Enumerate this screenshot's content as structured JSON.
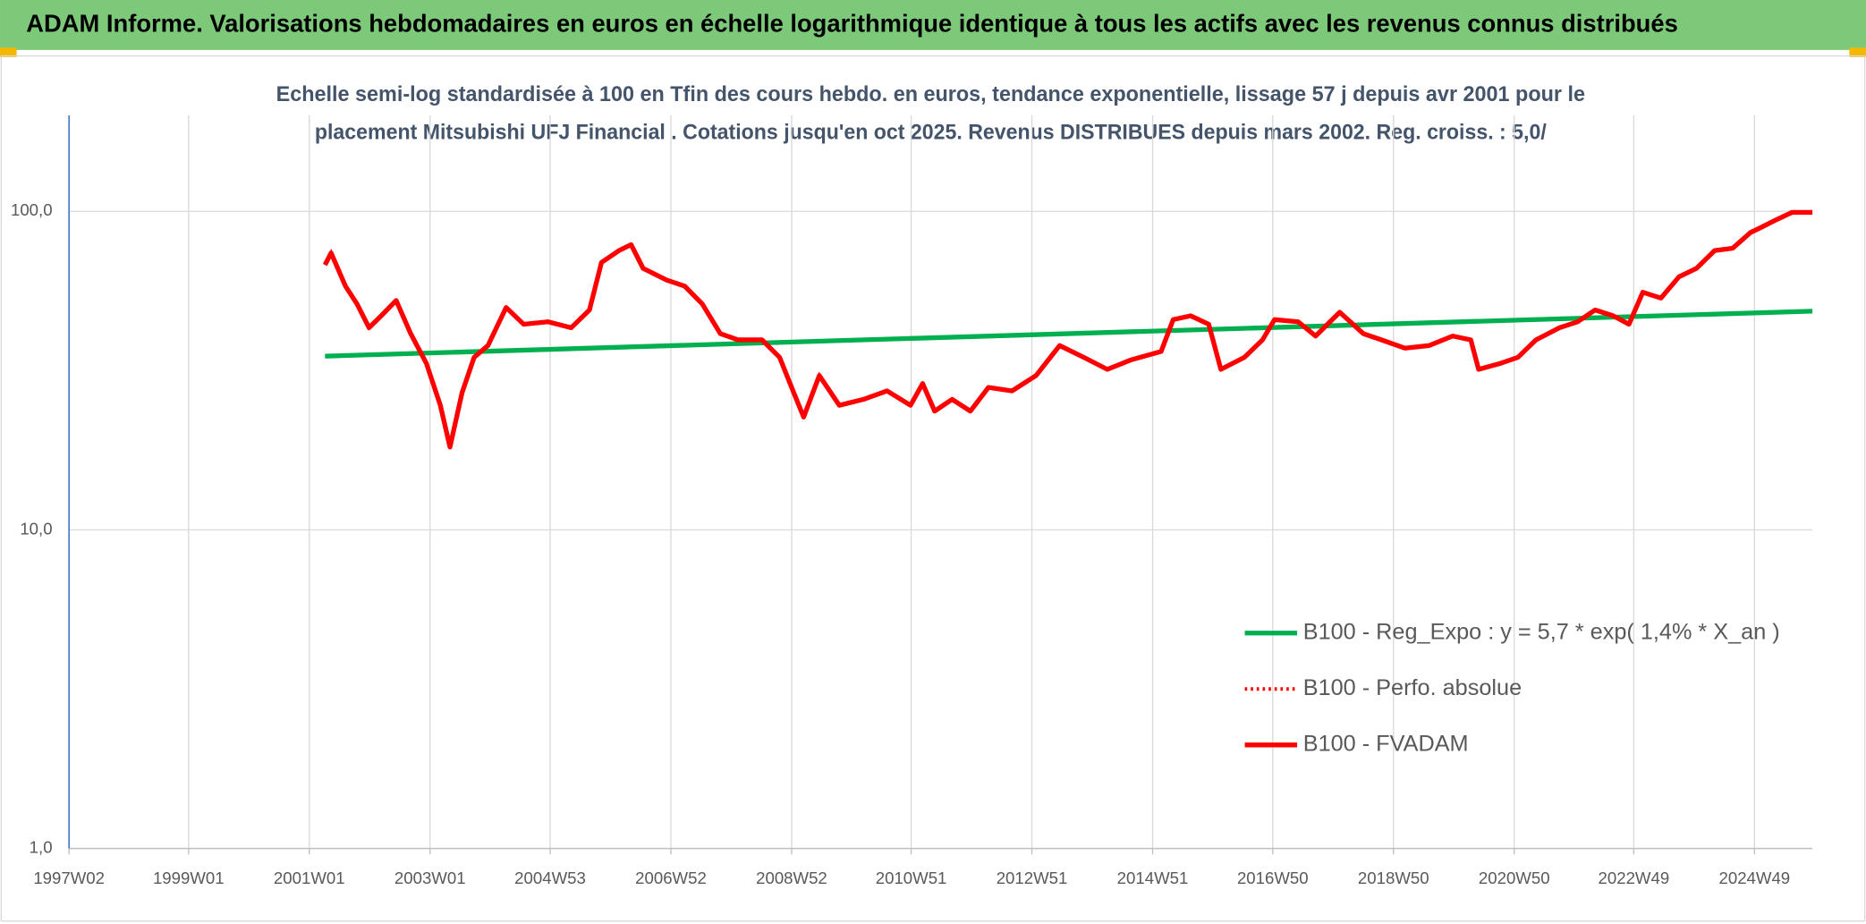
{
  "chart_data": {
    "type": "line",
    "header": "ADAM Informe. Valorisations hebdomadaires en euros en échelle logarithmique identique à tous les actifs avec les revenus connus distribués",
    "title": [
      "Echelle semi-log standardisée à 100 en Tfin des cours hebdo. en euros, tendance exponentielle, lissage 57 j depuis avr 2001 pour le",
      "placement Mitsubishi UFJ Financial . Cotations jusqu'en oct 2025. Revenus DISTRIBUES depuis mars 2002. Reg. croiss. : 5,0/"
    ],
    "log_y": true,
    "grid": true,
    "legend": "lower right",
    "xlim": [
      1997.02,
      2025.9
    ],
    "xticks": [
      {
        "value": 1997.02,
        "label": "1997W02"
      },
      {
        "value": 1999.0,
        "label": "1999W01"
      },
      {
        "value": 2001.0,
        "label": "2001W01"
      },
      {
        "value": 2003.0,
        "label": "2003W01"
      },
      {
        "value": 2004.99,
        "label": "2004W53"
      },
      {
        "value": 2006.99,
        "label": "2006W52"
      },
      {
        "value": 2008.99,
        "label": "2008W52"
      },
      {
        "value": 2010.97,
        "label": "2010W51"
      },
      {
        "value": 2012.97,
        "label": "2012W51"
      },
      {
        "value": 2014.97,
        "label": "2014W51"
      },
      {
        "value": 2016.96,
        "label": "2016W50"
      },
      {
        "value": 2018.96,
        "label": "2018W50"
      },
      {
        "value": 2020.96,
        "label": "2020W50"
      },
      {
        "value": 2022.94,
        "label": "2022W49"
      },
      {
        "value": 2024.94,
        "label": "2024W49"
      }
    ],
    "ylim": [
      1,
      200
    ],
    "yticks": [
      {
        "value": 1,
        "label": "1,0"
      },
      {
        "value": 10,
        "label": "10,0"
      },
      {
        "value": 100,
        "label": "100,0"
      }
    ],
    "series": [
      {
        "name": "B100 - Reg_Expo : y = 5,7 * exp( 1,4% *  X_an )",
        "color": "#00b050",
        "style": "solid",
        "x": [
          2001.26,
          2025.9
        ],
        "values": [
          35.1,
          48.6
        ]
      },
      {
        "name": "B100 - Perfo. absolue",
        "color": "#ff0000",
        "style": "dotted",
        "x": [
          2001.26,
          2001.36,
          2001.6,
          2001.79,
          2001.99,
          2002.19,
          2002.44,
          2002.68,
          2002.94,
          2003.17,
          2003.33,
          2003.53,
          2003.73,
          2003.96,
          2004.26,
          2004.55,
          2004.95,
          2005.34,
          2005.64,
          2005.84,
          2006.13,
          2006.33,
          2006.53,
          2006.92,
          2007.22,
          2007.51,
          2007.81,
          2008.1,
          2008.5,
          2008.79,
          2008.99,
          2009.19,
          2009.45,
          2009.78,
          2010.18,
          2010.57,
          2010.96,
          2011.16,
          2011.36,
          2011.65,
          2011.95,
          2012.25,
          2012.64,
          2013.04,
          2013.43,
          2013.83,
          2014.22,
          2014.62,
          2015.11,
          2015.31,
          2015.6,
          2015.9,
          2016.1,
          2016.49,
          2016.79,
          2016.99,
          2017.38,
          2017.67,
          2018.07,
          2018.46,
          2018.76,
          2019.15,
          2019.55,
          2019.94,
          2020.24,
          2020.37,
          2020.73,
          2021.02,
          2021.32,
          2021.71,
          2022.01,
          2022.3,
          2022.6,
          2022.86,
          2023.09,
          2023.39,
          2023.69,
          2023.98,
          2024.28,
          2024.58,
          2024.87,
          2025.07,
          2025.27,
          2025.56,
          2025.9
        ],
        "values": [
          67.9,
          74.0,
          58.2,
          51.2,
          43.1,
          47.0,
          52.5,
          41.3,
          33.3,
          24.6,
          18.2,
          26.9,
          34.8,
          37.9,
          49.9,
          44.2,
          45.0,
          43.1,
          49.0,
          69.1,
          75.3,
          78.6,
          66.2,
          60.8,
          58.2,
          51.2,
          41.3,
          39.5,
          39.5,
          34.8,
          28.0,
          22.6,
          30.5,
          24.6,
          25.7,
          27.3,
          24.6,
          28.8,
          23.6,
          25.7,
          23.6,
          28.0,
          27.3,
          30.5,
          37.9,
          34.8,
          31.9,
          34.2,
          36.3,
          45.7,
          47.0,
          44.2,
          31.9,
          34.8,
          39.5,
          45.7,
          45.0,
          40.6,
          48.2,
          41.3,
          39.5,
          37.2,
          37.9,
          40.6,
          39.5,
          31.9,
          33.3,
          34.8,
          39.5,
          43.1,
          45.0,
          49.0,
          47.0,
          44.2,
          55.7,
          53.4,
          62.3,
          66.2,
          75.3,
          76.6,
          85.7,
          89.4,
          93.4,
          99.2,
          99.2
        ]
      },
      {
        "name": "B100 - FVADAM",
        "color": "#ff0000",
        "style": "solid",
        "x": [
          2001.26,
          2001.36,
          2001.6,
          2001.79,
          2001.99,
          2002.19,
          2002.44,
          2002.68,
          2002.94,
          2003.17,
          2003.33,
          2003.53,
          2003.73,
          2003.96,
          2004.26,
          2004.55,
          2004.95,
          2005.34,
          2005.64,
          2005.84,
          2006.13,
          2006.33,
          2006.53,
          2006.92,
          2007.22,
          2007.51,
          2007.81,
          2008.1,
          2008.5,
          2008.79,
          2008.99,
          2009.19,
          2009.45,
          2009.78,
          2010.18,
          2010.57,
          2010.96,
          2011.16,
          2011.36,
          2011.65,
          2011.95,
          2012.25,
          2012.64,
          2013.04,
          2013.43,
          2013.83,
          2014.22,
          2014.62,
          2015.11,
          2015.31,
          2015.6,
          2015.9,
          2016.1,
          2016.49,
          2016.79,
          2016.99,
          2017.38,
          2017.67,
          2018.07,
          2018.46,
          2018.76,
          2019.15,
          2019.55,
          2019.94,
          2020.24,
          2020.37,
          2020.73,
          2021.02,
          2021.32,
          2021.71,
          2022.01,
          2022.3,
          2022.6,
          2022.86,
          2023.09,
          2023.39,
          2023.69,
          2023.98,
          2024.28,
          2024.58,
          2024.87,
          2025.07,
          2025.27,
          2025.56,
          2025.9
        ],
        "values": [
          67.9,
          74.0,
          58.2,
          51.2,
          43.1,
          47.0,
          52.5,
          41.3,
          33.3,
          24.6,
          18.2,
          26.9,
          34.8,
          37.9,
          49.9,
          44.2,
          45.0,
          43.1,
          49.0,
          69.1,
          75.3,
          78.6,
          66.2,
          60.8,
          58.2,
          51.2,
          41.3,
          39.5,
          39.5,
          34.8,
          28.0,
          22.6,
          30.5,
          24.6,
          25.7,
          27.3,
          24.6,
          28.8,
          23.6,
          25.7,
          23.6,
          28.0,
          27.3,
          30.5,
          37.9,
          34.8,
          31.9,
          34.2,
          36.3,
          45.7,
          47.0,
          44.2,
          31.9,
          34.8,
          39.5,
          45.7,
          45.0,
          40.6,
          48.2,
          41.3,
          39.5,
          37.2,
          37.9,
          40.6,
          39.5,
          31.9,
          33.3,
          34.8,
          39.5,
          43.1,
          45.0,
          49.0,
          47.0,
          44.2,
          55.7,
          53.4,
          62.3,
          66.2,
          75.3,
          76.6,
          85.7,
          89.4,
          93.4,
          99.2,
          99.2
        ]
      }
    ]
  }
}
